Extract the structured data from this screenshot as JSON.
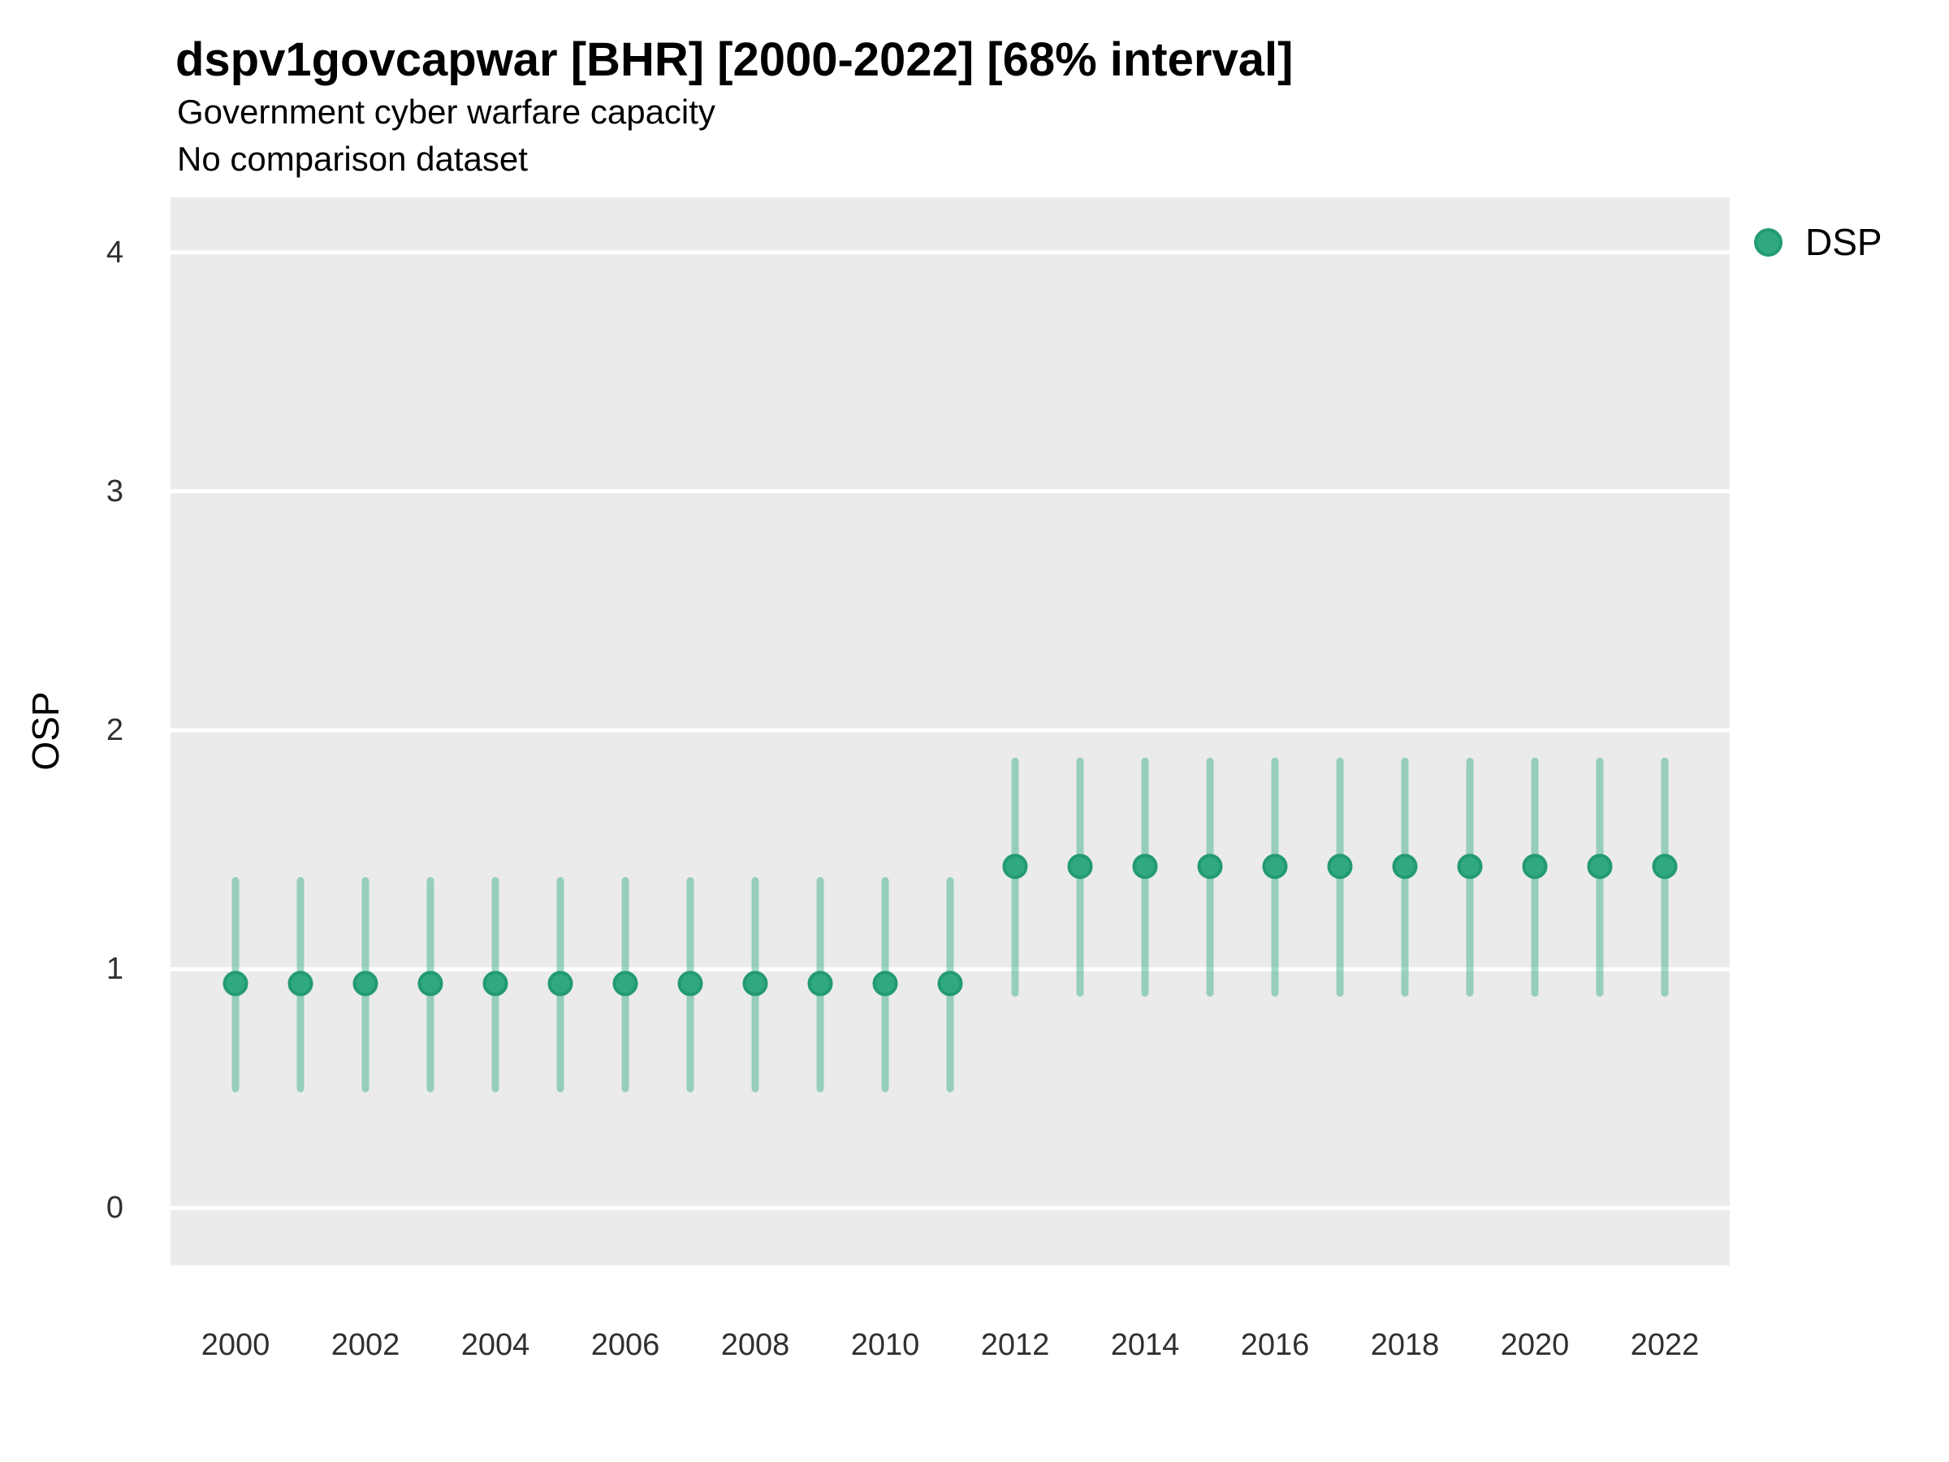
{
  "header": {
    "title": "dspv1govcapwar [BHR] [2000-2022] [68% interval]",
    "subtitle_line1": "Government cyber warfare capacity",
    "subtitle_line2": "No comparison dataset"
  },
  "colors": {
    "panel_bg": "#EBEBEB",
    "gridline": "#FFFFFF",
    "point_fill": "#30A982",
    "point_stroke": "#239A72",
    "interval_line": "rgba(47,170,128,0.45)",
    "axis_text": "#303030",
    "title_text": "#000000"
  },
  "legend": {
    "label": "DSP",
    "marker": "circle-icon",
    "position": "top-right"
  },
  "chart_data": {
    "type": "scatter",
    "subtype": "pointrange",
    "title": "dspv1govcapwar [BHR] [2000-2022] [68% interval]",
    "subtitle": [
      "Government cyber warfare capacity",
      "No comparison dataset"
    ],
    "xlabel": "",
    "ylabel": "OSP",
    "interval_level": "68%",
    "grid": "horizontal-major-only",
    "legend_entries": [
      "DSP"
    ],
    "xlim": [
      1999,
      2023
    ],
    "ylim": [
      -0.24,
      4.23
    ],
    "x_ticks": [
      2000,
      2002,
      2004,
      2006,
      2008,
      2010,
      2012,
      2014,
      2016,
      2018,
      2020,
      2022
    ],
    "y_ticks": [
      0,
      1,
      2,
      3,
      4
    ],
    "series": [
      {
        "name": "DSP",
        "x": [
          2000,
          2001,
          2002,
          2003,
          2004,
          2005,
          2006,
          2007,
          2008,
          2009,
          2010,
          2011,
          2012,
          2013,
          2014,
          2015,
          2016,
          2017,
          2018,
          2019,
          2020,
          2021,
          2022
        ],
        "estimate": [
          0.94,
          0.94,
          0.94,
          0.94,
          0.94,
          0.94,
          0.94,
          0.94,
          0.94,
          0.94,
          0.94,
          0.94,
          1.43,
          1.43,
          1.43,
          1.43,
          1.43,
          1.43,
          1.43,
          1.43,
          1.43,
          1.43,
          1.43
        ],
        "lower": [
          0.5,
          0.5,
          0.5,
          0.5,
          0.5,
          0.5,
          0.5,
          0.5,
          0.5,
          0.5,
          0.5,
          0.5,
          0.9,
          0.9,
          0.9,
          0.9,
          0.9,
          0.9,
          0.9,
          0.9,
          0.9,
          0.9,
          0.9
        ],
        "upper": [
          1.37,
          1.37,
          1.37,
          1.37,
          1.37,
          1.37,
          1.37,
          1.37,
          1.37,
          1.37,
          1.37,
          1.37,
          1.87,
          1.87,
          1.87,
          1.87,
          1.87,
          1.87,
          1.87,
          1.87,
          1.87,
          1.87,
          1.87
        ]
      }
    ]
  }
}
